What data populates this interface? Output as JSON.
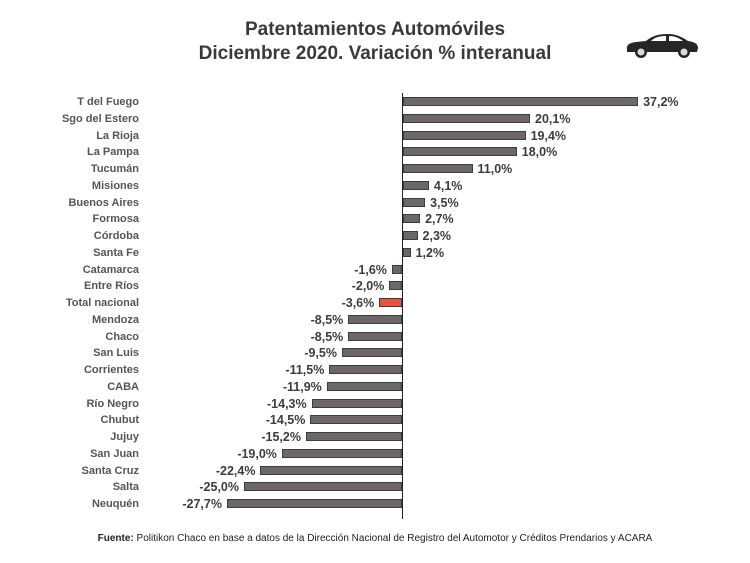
{
  "title": {
    "line1": "Patentamientos Automóviles",
    "line2": "Diciembre 2020. Variación % interanual"
  },
  "icon": "car-icon",
  "colors": {
    "bar": "#6d6767",
    "highlight": "#e8533a",
    "axis": "#222222"
  },
  "source": {
    "label": "Fuente:",
    "text": " Politikon Chaco en base a datos de la Dirección Nacional de Registro del Automotor y Créditos Prendarios y ACARA"
  },
  "chart_data": {
    "type": "bar",
    "orientation": "horizontal",
    "title": "Patentamientos Automóviles Diciembre 2020. Variación % interanual",
    "xlabel": "",
    "ylabel": "",
    "grid": false,
    "legend": null,
    "highlight": "Total nacional",
    "categories": [
      "T del Fuego",
      "Sgo del Estero",
      "La Rioja",
      "La Pampa",
      "Tucumán",
      "Misiones",
      "Buenos Aires",
      "Formosa",
      "Córdoba",
      "Santa Fe",
      "Catamarca",
      "Entre Ríos",
      "Total nacional",
      "Mendoza",
      "Chaco",
      "San Luis",
      "Corrientes",
      "CABA",
      "Río Negro",
      "Chubut",
      "Jujuy",
      "San Juan",
      "Santa Cruz",
      "Salta",
      "Neuquén"
    ],
    "values": [
      37.2,
      20.1,
      19.4,
      18.0,
      11.0,
      4.1,
      3.5,
      2.7,
      2.3,
      1.2,
      -1.6,
      -2.0,
      -3.6,
      -8.5,
      -8.5,
      -9.5,
      -11.5,
      -11.9,
      -14.3,
      -14.5,
      -15.2,
      -19.0,
      -22.4,
      -25.0,
      -27.7
    ],
    "labels": [
      "37,2%",
      "20,1%",
      "19,4%",
      "18,0%",
      "11,0%",
      "4,1%",
      "3,5%",
      "2,7%",
      "2,3%",
      "1,2%",
      "-1,6%",
      "-2,0%",
      "-3,6%",
      "-8,5%",
      "-8,5%",
      "-9,5%",
      "-11,5%",
      "-11,9%",
      "-14,3%",
      "-14,5%",
      "-15,2%",
      "-19,0%",
      "-22,4%",
      "-25,0%",
      "-27,7%"
    ],
    "xlim": [
      -30,
      40
    ]
  }
}
